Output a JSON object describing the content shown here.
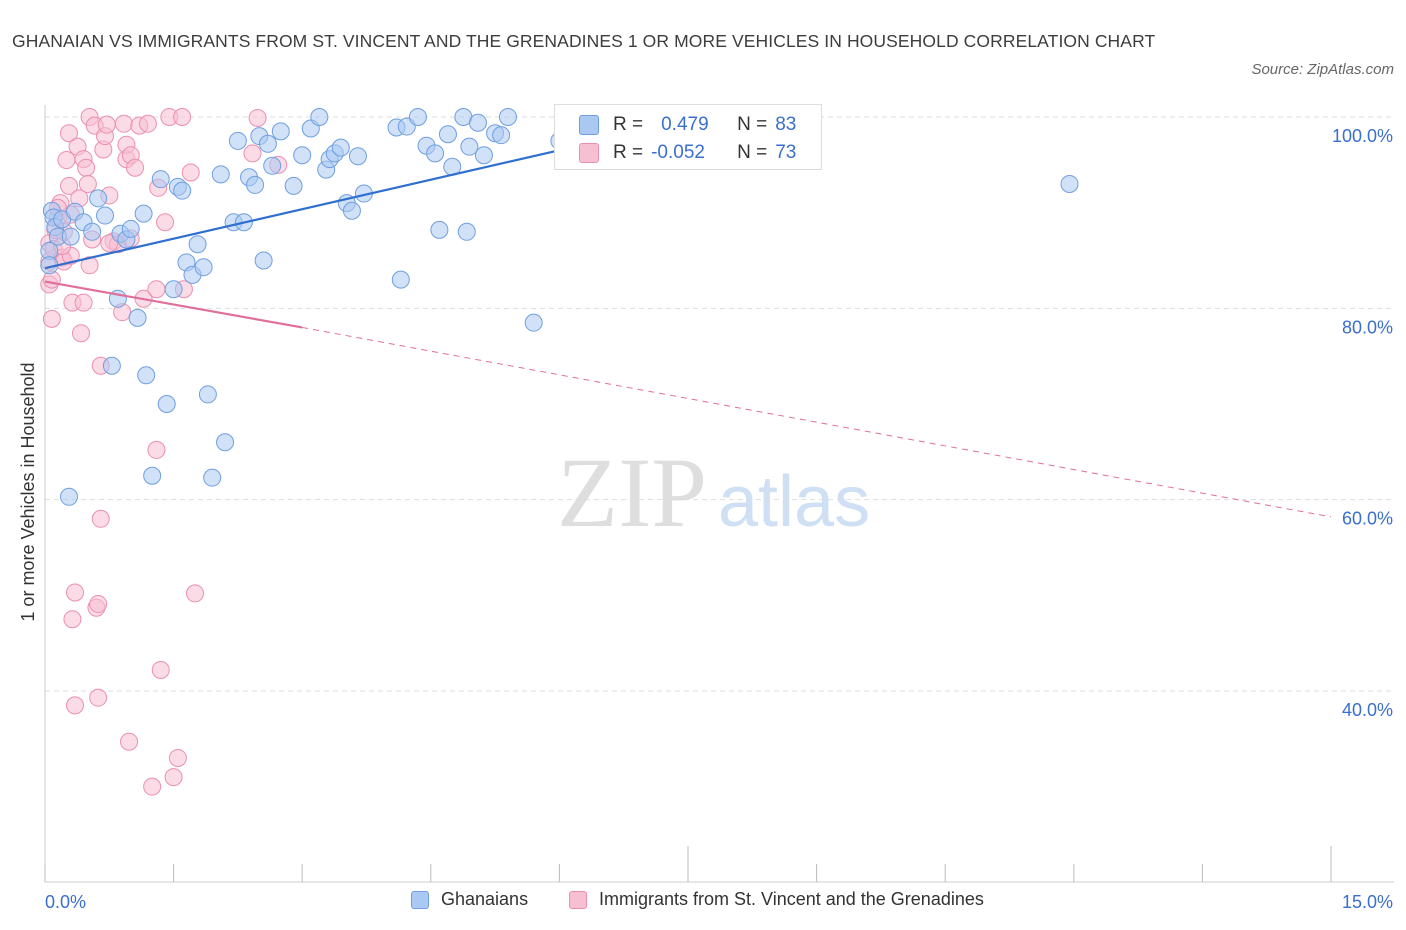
{
  "title": "GHANAIAN VS IMMIGRANTS FROM ST. VINCENT AND THE GRENADINES 1 OR MORE VEHICLES IN HOUSEHOLD CORRELATION CHART",
  "source": "Source: ZipAtlas.com",
  "watermark": {
    "zip": "ZIP",
    "atlas": "atlas"
  },
  "colors": {
    "blue_fill": "#a9c8f2",
    "blue_stroke": "#6f9fe0",
    "blue_line": "#2f6fcf",
    "pink_fill": "#f7bfd2",
    "pink_stroke": "#eb8fb0",
    "pink_line": "#e0709a",
    "axis_text": "#3a6fcf",
    "grid": "#dddddd"
  },
  "stats": {
    "row1": {
      "r_label": "R =",
      "r_value": "0.479",
      "n_label": "N =",
      "n_value": "83"
    },
    "row2": {
      "r_label": "R =",
      "r_value": "-0.052",
      "n_label": "N =",
      "n_value": "73"
    }
  },
  "legend": {
    "series1": "Ghanaians",
    "series2": "Immigrants from St. Vincent and the Grenadines"
  },
  "chart_data": {
    "type": "scatter",
    "title": "GHANAIAN VS IMMIGRANTS FROM ST. VINCENT AND THE GRENADINES 1 OR MORE VEHICLES IN HOUSEHOLD CORRELATION CHART",
    "xlabel": "",
    "ylabel": "1 or more Vehicles in Household",
    "xlim": [
      0,
      15
    ],
    "ylim": [
      20,
      102
    ],
    "x_tick_labels": [
      "0.0%",
      "15.0%"
    ],
    "y_ticks": [
      40,
      60,
      80,
      100
    ],
    "y_tick_labels": [
      "40.0%",
      "60.0%",
      "80.0%",
      "100.0%"
    ],
    "grid": true,
    "legend_position": "bottom",
    "series": [
      {
        "name": "Ghanaians",
        "trend": {
          "x": [
            0,
            7.4
          ],
          "y": [
            84.2,
            99.4
          ],
          "dashed_extension": false
        },
        "points": [
          [
            0.08,
            90.2
          ],
          [
            0.1,
            89.5
          ],
          [
            0.12,
            88.5
          ],
          [
            0.15,
            87.5
          ],
          [
            0.2,
            89.3
          ],
          [
            0.28,
            60.3
          ],
          [
            0.35,
            90.1
          ],
          [
            0.45,
            89.0
          ],
          [
            0.55,
            88.0
          ],
          [
            0.62,
            91.5
          ],
          [
            0.7,
            89.7
          ],
          [
            0.78,
            74.0
          ],
          [
            0.85,
            81.0
          ],
          [
            0.88,
            87.8
          ],
          [
            0.95,
            87.2
          ],
          [
            1.0,
            88.3
          ],
          [
            1.08,
            79.0
          ],
          [
            1.15,
            89.9
          ],
          [
            1.18,
            73.0
          ],
          [
            1.25,
            62.5
          ],
          [
            1.35,
            93.5
          ],
          [
            1.42,
            70.0
          ],
          [
            1.5,
            82.0
          ],
          [
            1.55,
            92.7
          ],
          [
            1.6,
            92.3
          ],
          [
            1.65,
            84.8
          ],
          [
            1.72,
            83.5
          ],
          [
            1.78,
            86.7
          ],
          [
            1.85,
            84.3
          ],
          [
            1.9,
            71.0
          ],
          [
            1.95,
            62.3
          ],
          [
            2.05,
            94.0
          ],
          [
            2.1,
            66.0
          ],
          [
            2.2,
            89.0
          ],
          [
            2.25,
            97.5
          ],
          [
            2.32,
            89.0
          ],
          [
            2.38,
            93.7
          ],
          [
            2.45,
            92.9
          ],
          [
            2.5,
            98.0
          ],
          [
            2.55,
            85.0
          ],
          [
            2.6,
            97.2
          ],
          [
            2.65,
            94.9
          ],
          [
            2.75,
            98.5
          ],
          [
            2.9,
            92.8
          ],
          [
            3.0,
            96.0
          ],
          [
            3.1,
            98.8
          ],
          [
            3.2,
            100.0
          ],
          [
            3.28,
            94.5
          ],
          [
            3.32,
            95.6
          ],
          [
            3.38,
            96.2
          ],
          [
            3.45,
            96.8
          ],
          [
            3.52,
            91.0
          ],
          [
            3.58,
            90.2
          ],
          [
            3.65,
            95.9
          ],
          [
            3.72,
            92.0
          ],
          [
            4.1,
            98.9
          ],
          [
            4.15,
            83.0
          ],
          [
            4.22,
            99.0
          ],
          [
            4.35,
            100.0
          ],
          [
            4.45,
            97.0
          ],
          [
            4.55,
            96.2
          ],
          [
            4.6,
            88.2
          ],
          [
            4.7,
            98.2
          ],
          [
            4.75,
            94.8
          ],
          [
            4.88,
            100.0
          ],
          [
            4.92,
            88.0
          ],
          [
            4.95,
            96.9
          ],
          [
            5.05,
            99.4
          ],
          [
            5.12,
            96.0
          ],
          [
            5.25,
            98.3
          ],
          [
            5.32,
            98.1
          ],
          [
            5.4,
            100.0
          ],
          [
            5.7,
            78.5
          ],
          [
            6.0,
            97.5
          ],
          [
            6.18,
            98.4
          ],
          [
            6.35,
            99.5
          ],
          [
            6.52,
            100.0
          ],
          [
            6.9,
            99.9
          ],
          [
            7.05,
            99.4
          ],
          [
            11.95,
            93.0
          ],
          [
            0.05,
            86.0
          ],
          [
            0.05,
            84.5
          ],
          [
            0.3,
            87.5
          ]
        ]
      },
      {
        "name": "Immigrants from St. Vincent and the Grenadines",
        "trend": {
          "x": [
            0,
            3.0
          ],
          "y": [
            82.8,
            78.0
          ],
          "dashed_extension": true,
          "dashed_to": [
            15,
            58.2
          ]
        },
        "points": [
          [
            0.05,
            86.8
          ],
          [
            0.05,
            82.5
          ],
          [
            0.05,
            84.9
          ],
          [
            0.08,
            78.9
          ],
          [
            0.1,
            86.2
          ],
          [
            0.12,
            88.2
          ],
          [
            0.15,
            89.5
          ],
          [
            0.18,
            91.0
          ],
          [
            0.2,
            85.3
          ],
          [
            0.22,
            84.9
          ],
          [
            0.25,
            95.5
          ],
          [
            0.28,
            92.8
          ],
          [
            0.28,
            98.3
          ],
          [
            0.3,
            89.8
          ],
          [
            0.3,
            85.5
          ],
          [
            0.32,
            80.6
          ],
          [
            0.32,
            47.5
          ],
          [
            0.35,
            38.5
          ],
          [
            0.35,
            50.3
          ],
          [
            0.38,
            96.9
          ],
          [
            0.4,
            91.5
          ],
          [
            0.42,
            77.4
          ],
          [
            0.45,
            95.6
          ],
          [
            0.48,
            94.7
          ],
          [
            0.5,
            93.0
          ],
          [
            0.52,
            100.0
          ],
          [
            0.52,
            84.5
          ],
          [
            0.55,
            87.2
          ],
          [
            0.58,
            99.1
          ],
          [
            0.6,
            48.7
          ],
          [
            0.62,
            49.1
          ],
          [
            0.62,
            39.3
          ],
          [
            0.65,
            74.0
          ],
          [
            0.65,
            58.0
          ],
          [
            0.68,
            96.6
          ],
          [
            0.7,
            98.0
          ],
          [
            0.72,
            99.2
          ],
          [
            0.75,
            91.8
          ],
          [
            0.8,
            87.0
          ],
          [
            0.85,
            86.7
          ],
          [
            0.9,
            79.6
          ],
          [
            0.92,
            99.3
          ],
          [
            0.95,
            95.6
          ],
          [
            0.95,
            97.1
          ],
          [
            0.98,
            34.7
          ],
          [
            1.0,
            96.0
          ],
          [
            1.0,
            87.3
          ],
          [
            1.05,
            94.7
          ],
          [
            1.1,
            99.1
          ],
          [
            1.15,
            81.0
          ],
          [
            1.2,
            99.3
          ],
          [
            1.25,
            30.0
          ],
          [
            1.3,
            65.2
          ],
          [
            1.3,
            82.0
          ],
          [
            1.32,
            92.6
          ],
          [
            1.35,
            42.2
          ],
          [
            1.4,
            89.0
          ],
          [
            1.45,
            100.0
          ],
          [
            1.5,
            31.0
          ],
          [
            1.55,
            33.0
          ],
          [
            1.6,
            100.0
          ],
          [
            1.62,
            82.0
          ],
          [
            1.7,
            94.2
          ],
          [
            1.75,
            50.2
          ],
          [
            2.42,
            96.2
          ],
          [
            2.48,
            99.9
          ],
          [
            2.72,
            95.0
          ],
          [
            0.15,
            90.5
          ],
          [
            0.08,
            83.0
          ],
          [
            0.2,
            86.5
          ],
          [
            0.22,
            88.0
          ],
          [
            0.45,
            80.6
          ],
          [
            0.75,
            86.8
          ]
        ]
      }
    ]
  }
}
